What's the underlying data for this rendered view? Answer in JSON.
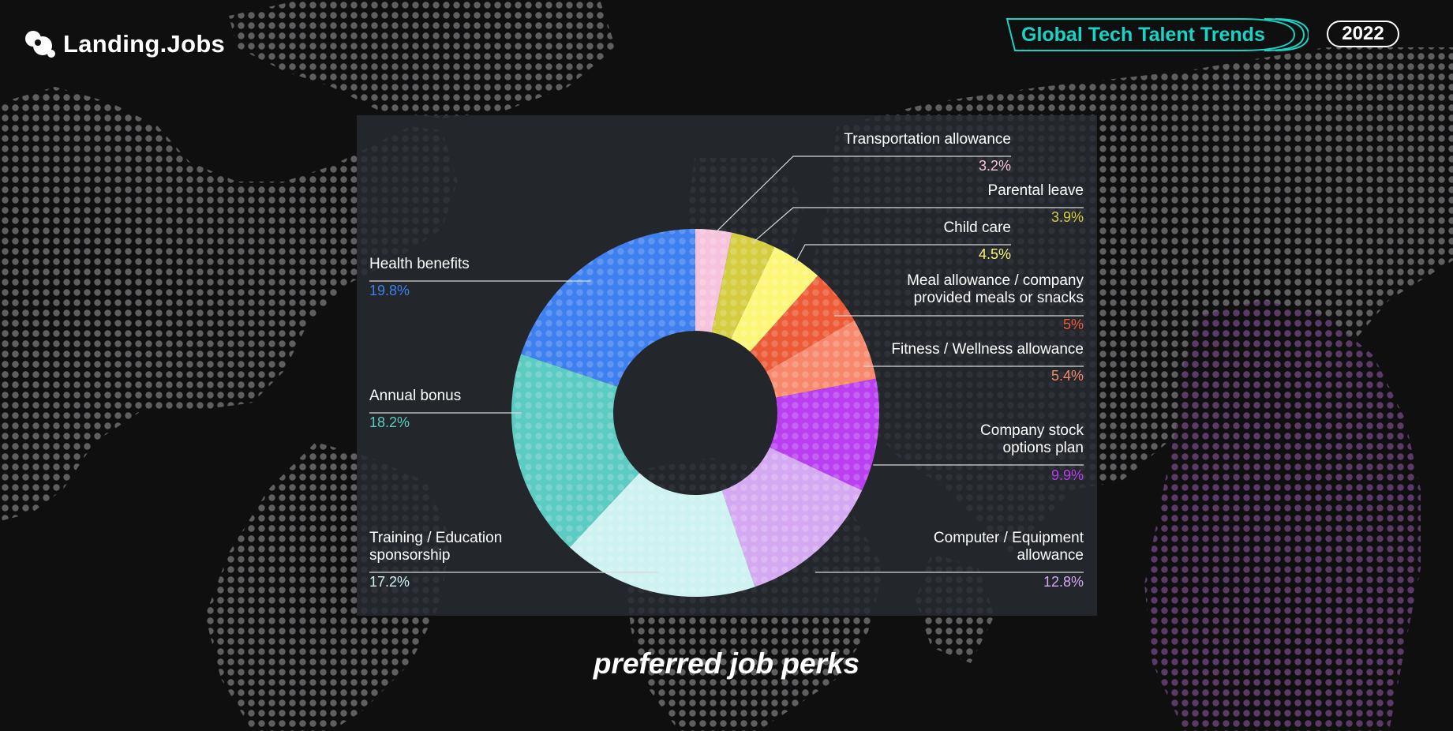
{
  "brand": {
    "name": "Landing.Jobs",
    "icon": "bubbles-logo-icon"
  },
  "header": {
    "trends_label": "Global Tech Talent Trends",
    "year": "2022",
    "trends_color": "#19d3c5"
  },
  "caption": "preferred job perks",
  "chart_data": {
    "type": "pie",
    "title": "",
    "donut": true,
    "unit": "%",
    "categories": [
      "Transportation allowance",
      "Parental leave",
      "Child care",
      "Meal allowance / company provided meals or snacks",
      "Fitness / Wellness allowance",
      "Company stock options plan",
      "Computer / Equipment allowance",
      "Training / Education sponsorship",
      "Annual bonus",
      "Health benefits"
    ],
    "values": [
      3.2,
      3.9,
      4.5,
      5,
      5.4,
      9.9,
      12.8,
      17.2,
      18.2,
      19.8
    ],
    "value_labels": [
      "3.2%",
      "3.9%",
      "4.5%",
      "5%",
      "5.4%",
      "9.9%",
      "12.8%",
      "17.2%",
      "18.2%",
      "19.8%"
    ],
    "colors": [
      "#f6c3dc",
      "#d4cd3f",
      "#fbf675",
      "#ec5a36",
      "#f7886b",
      "#b93ff0",
      "#d5a9f2",
      "#cdf2f1",
      "#5ccbc2",
      "#3e80ef"
    ]
  }
}
